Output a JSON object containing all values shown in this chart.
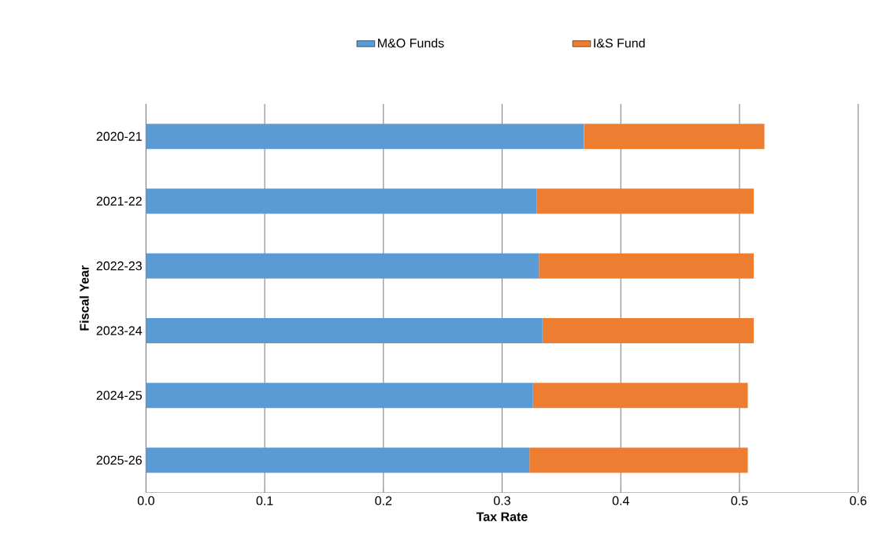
{
  "chart_data": {
    "type": "bar",
    "orientation": "horizontal",
    "stacked": true,
    "categories": [
      "2020-21",
      "2021-22",
      "2022-23",
      "2023-24",
      "2024-25",
      "2025-26"
    ],
    "series": [
      {
        "name": "M&O Funds",
        "color": "#5b9bd5",
        "values": [
          0.369,
          0.329,
          0.331,
          0.334,
          0.326,
          0.323
        ]
      },
      {
        "name": "I&S Fund",
        "color": "#ed7d31",
        "values": [
          0.152,
          0.183,
          0.181,
          0.178,
          0.181,
          0.184
        ]
      }
    ],
    "xlim": [
      0,
      0.6
    ],
    "xticks": [
      {
        "value": 0,
        "label": "0.0"
      },
      {
        "value": 0.1,
        "label": "0.1"
      },
      {
        "value": 0.2,
        "label": "0.2"
      },
      {
        "value": 0.3,
        "label": "0.3"
      },
      {
        "value": 0.4,
        "label": "0.4"
      },
      {
        "value": 0.5,
        "label": "0.5"
      },
      {
        "value": 0.6,
        "label": "0.6"
      }
    ],
    "xlabel": "Tax Rate",
    "ylabel": "Fiscal Year",
    "grid": "x",
    "legend": "top"
  }
}
